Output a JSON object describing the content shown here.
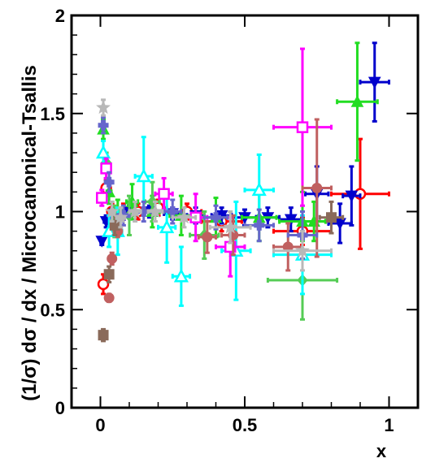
{
  "chart_data": {
    "type": "scatter",
    "title": "",
    "xlabel": "x",
    "ylabel": "(1/σ) dσ / dx / Microcanonical-Tsallis",
    "xlim": [
      -0.1,
      1.1
    ],
    "ylim": [
      0,
      2
    ],
    "xticks": [
      {
        "value": 0,
        "label": "0"
      },
      {
        "value": 0.5,
        "label": "0.5"
      },
      {
        "value": 1,
        "label": "1"
      }
    ],
    "yticks": [
      {
        "value": 0,
        "label": "0"
      },
      {
        "value": 0.5,
        "label": "0.5"
      },
      {
        "value": 1,
        "label": "1"
      },
      {
        "value": 1.5,
        "label": "1.5"
      },
      {
        "value": 2,
        "label": "2"
      }
    ],
    "grid": false,
    "legend": "none",
    "series": [
      {
        "color": "#ff0000",
        "marker": "open-circle",
        "points": [
          {
            "x": 0.01,
            "y": 0.63,
            "xerr": 0.008,
            "yerr": 0.05
          },
          {
            "x": 0.02,
            "y": 1.12,
            "xerr": 0.008,
            "yerr": 0.04
          },
          {
            "x": 0.04,
            "y": 1.0,
            "xerr": 0.01,
            "yerr": 0.04
          },
          {
            "x": 0.08,
            "y": 1.0,
            "xerr": 0.02,
            "yerr": 0.04
          },
          {
            "x": 0.13,
            "y": 1.0,
            "xerr": 0.025,
            "yerr": 0.04
          },
          {
            "x": 0.2,
            "y": 1.02,
            "xerr": 0.03,
            "yerr": 0.04
          },
          {
            "x": 0.3,
            "y": 1.0,
            "xerr": 0.05,
            "yerr": 0.04
          },
          {
            "x": 0.42,
            "y": 0.95,
            "xerr": 0.07,
            "yerr": 0.05
          },
          {
            "x": 0.7,
            "y": 0.9,
            "xerr": 0.1,
            "yerr": 0.07
          },
          {
            "x": 0.9,
            "y": 1.09,
            "xerr": 0.1,
            "yerr": 0.28
          }
        ]
      },
      {
        "color": "#0000cc",
        "marker": "filled-triangle-down",
        "points": [
          {
            "x": 0.005,
            "y": 0.85,
            "xerr": 0.005,
            "yerr": 0.02
          },
          {
            "x": 0.02,
            "y": 0.95,
            "xerr": 0.008,
            "yerr": 0.03
          },
          {
            "x": 0.05,
            "y": 0.99,
            "xerr": 0.012,
            "yerr": 0.03
          },
          {
            "x": 0.1,
            "y": 1.0,
            "xerr": 0.02,
            "yerr": 0.03
          },
          {
            "x": 0.17,
            "y": 1.0,
            "xerr": 0.025,
            "yerr": 0.03
          },
          {
            "x": 0.25,
            "y": 0.99,
            "xerr": 0.03,
            "yerr": 0.03
          },
          {
            "x": 0.33,
            "y": 0.98,
            "xerr": 0.03,
            "yerr": 0.04
          },
          {
            "x": 0.42,
            "y": 0.98,
            "xerr": 0.035,
            "yerr": 0.04
          },
          {
            "x": 0.5,
            "y": 0.97,
            "xerr": 0.04,
            "yerr": 0.04
          },
          {
            "x": 0.58,
            "y": 0.97,
            "xerr": 0.04,
            "yerr": 0.05
          },
          {
            "x": 0.66,
            "y": 0.96,
            "xerr": 0.04,
            "yerr": 0.06
          },
          {
            "x": 0.75,
            "y": 1.09,
            "xerr": 0.04,
            "yerr": 0.14
          },
          {
            "x": 0.83,
            "y": 0.94,
            "xerr": 0.04,
            "yerr": 0.1
          },
          {
            "x": 0.87,
            "y": 1.08,
            "xerr": 0.03,
            "yerr": 0.15
          },
          {
            "x": 0.95,
            "y": 1.66,
            "xerr": 0.05,
            "yerr": 0.2
          }
        ]
      },
      {
        "color": "#22dd22",
        "marker": "filled-triangle-up",
        "points": [
          {
            "x": 0.01,
            "y": 1.42,
            "xerr": 0.006,
            "yerr": 0.05
          },
          {
            "x": 0.03,
            "y": 1.1,
            "xerr": 0.008,
            "yerr": 0.06
          },
          {
            "x": 0.06,
            "y": 1.0,
            "xerr": 0.012,
            "yerr": 0.06
          },
          {
            "x": 0.11,
            "y": 1.05,
            "xerr": 0.02,
            "yerr": 0.09
          },
          {
            "x": 0.18,
            "y": 1.0,
            "xerr": 0.025,
            "yerr": 0.08
          },
          {
            "x": 0.28,
            "y": 0.98,
            "xerr": 0.04,
            "yerr": 0.1
          },
          {
            "x": 0.4,
            "y": 0.97,
            "xerr": 0.05,
            "yerr": 0.1
          },
          {
            "x": 0.55,
            "y": 0.97,
            "xerr": 0.06,
            "yerr": 0.12
          },
          {
            "x": 0.7,
            "y": 0.95,
            "xerr": 0.08,
            "yerr": 0.15
          },
          {
            "x": 0.74,
            "y": 0.95,
            "xerr": 0.04,
            "yerr": 0.1
          },
          {
            "x": 0.89,
            "y": 1.56,
            "xerr": 0.07,
            "yerr": 0.3
          }
        ]
      },
      {
        "color": "#55cc55",
        "marker": "filled-diamond",
        "points": [
          {
            "x": 0.02,
            "y": 1.25,
            "xerr": 0.008,
            "yerr": 0.05
          },
          {
            "x": 0.05,
            "y": 0.95,
            "xerr": 0.012,
            "yerr": 0.08
          },
          {
            "x": 0.1,
            "y": 0.98,
            "xerr": 0.02,
            "yerr": 0.1
          },
          {
            "x": 0.18,
            "y": 1.05,
            "xerr": 0.025,
            "yerr": 0.1
          },
          {
            "x": 0.36,
            "y": 0.88,
            "xerr": 0.05,
            "yerr": 0.12
          },
          {
            "x": 0.7,
            "y": 0.65,
            "xerr": 0.12,
            "yerr": 0.2
          }
        ]
      },
      {
        "color": "#00ffff",
        "marker": "open-triangle-up",
        "points": [
          {
            "x": 0.01,
            "y": 1.3,
            "xerr": 0.006,
            "yerr": 0.06
          },
          {
            "x": 0.03,
            "y": 0.9,
            "xerr": 0.008,
            "yerr": 0.08
          },
          {
            "x": 0.06,
            "y": 0.9,
            "xerr": 0.015,
            "yerr": 0.12
          },
          {
            "x": 0.15,
            "y": 1.18,
            "xerr": 0.03,
            "yerr": 0.2
          },
          {
            "x": 0.23,
            "y": 0.92,
            "xerr": 0.03,
            "yerr": 0.18
          },
          {
            "x": 0.28,
            "y": 0.67,
            "xerr": 0.03,
            "yerr": 0.15
          },
          {
            "x": 0.47,
            "y": 0.8,
            "xerr": 0.05,
            "yerr": 0.25
          },
          {
            "x": 0.55,
            "y": 1.11,
            "xerr": 0.05,
            "yerr": 0.18
          },
          {
            "x": 0.7,
            "y": 0.78,
            "xerr": 0.1,
            "yerr": 0.2
          }
        ]
      },
      {
        "color": "#ff00ff",
        "marker": "open-square",
        "points": [
          {
            "x": 0.005,
            "y": 1.07,
            "xerr": 0.005,
            "yerr": 0.04
          },
          {
            "x": 0.02,
            "y": 1.22,
            "xerr": 0.008,
            "yerr": 0.05
          },
          {
            "x": 0.22,
            "y": 1.09,
            "xerr": 0.03,
            "yerr": 0.08
          },
          {
            "x": 0.33,
            "y": 0.97,
            "xerr": 0.04,
            "yerr": 0.12
          },
          {
            "x": 0.45,
            "y": 0.82,
            "xerr": 0.05,
            "yerr": 0.15
          },
          {
            "x": 0.7,
            "y": 1.43,
            "xerr": 0.1,
            "yerr": 0.4
          }
        ]
      },
      {
        "color": "#c06060",
        "marker": "filled-circle",
        "points": [
          {
            "x": 0.03,
            "y": 0.56,
            "xerr": 0.0,
            "yerr": 0.02
          },
          {
            "x": 0.04,
            "y": 0.76,
            "xerr": 0.0,
            "yerr": 0.03
          },
          {
            "x": 0.06,
            "y": 0.9,
            "xerr": 0.0,
            "yerr": 0.03
          },
          {
            "x": 0.37,
            "y": 0.87,
            "xerr": 0.03,
            "yerr": 0.08
          },
          {
            "x": 0.46,
            "y": 0.88,
            "xerr": 0.04,
            "yerr": 0.1
          },
          {
            "x": 0.65,
            "y": 0.82,
            "xerr": 0.05,
            "yerr": 0.12
          },
          {
            "x": 0.75,
            "y": 1.12,
            "xerr": 0.05,
            "yerr": 0.35
          }
        ]
      },
      {
        "color": "#8a6a5a",
        "marker": "filled-square",
        "points": [
          {
            "x": 0.01,
            "y": 0.37,
            "xerr": 0.005,
            "yerr": 0.03
          },
          {
            "x": 0.03,
            "y": 0.68,
            "xerr": 0.005,
            "yerr": 0.04
          },
          {
            "x": 0.05,
            "y": 0.93,
            "xerr": 0.01,
            "yerr": 0.05
          },
          {
            "x": 0.8,
            "y": 0.97,
            "xerr": 0.04,
            "yerr": 0.08
          }
        ]
      },
      {
        "color": "#6666cc",
        "marker": "filled-cross",
        "points": [
          {
            "x": 0.01,
            "y": 1.44,
            "xerr": 0.005,
            "yerr": 0.04
          },
          {
            "x": 0.03,
            "y": 1.15,
            "xerr": 0.008,
            "yerr": 0.05
          },
          {
            "x": 0.08,
            "y": 0.98,
            "xerr": 0.02,
            "yerr": 0.05
          },
          {
            "x": 0.15,
            "y": 1.0,
            "xerr": 0.025,
            "yerr": 0.05
          },
          {
            "x": 0.25,
            "y": 1.0,
            "xerr": 0.03,
            "yerr": 0.06
          },
          {
            "x": 0.4,
            "y": 0.97,
            "xerr": 0.04,
            "yerr": 0.06
          },
          {
            "x": 0.55,
            "y": 0.93,
            "xerr": 0.05,
            "yerr": 0.08
          },
          {
            "x": 0.7,
            "y": 0.88,
            "xerr": 0.05,
            "yerr": 0.12
          }
        ]
      },
      {
        "color": "#b8b8b8",
        "marker": "filled-star",
        "points": [
          {
            "x": 0.01,
            "y": 1.53,
            "xerr": 0.005,
            "yerr": 0.04
          },
          {
            "x": 0.04,
            "y": 1.0,
            "xerr": 0.01,
            "yerr": 0.05
          },
          {
            "x": 0.07,
            "y": 0.97,
            "xerr": 0.015,
            "yerr": 0.05
          },
          {
            "x": 0.12,
            "y": 1.0,
            "xerr": 0.02,
            "yerr": 0.05
          },
          {
            "x": 0.19,
            "y": 1.0,
            "xerr": 0.025,
            "yerr": 0.05
          },
          {
            "x": 0.29,
            "y": 0.97,
            "xerr": 0.04,
            "yerr": 0.05
          },
          {
            "x": 0.45,
            "y": 0.92,
            "xerr": 0.07,
            "yerr": 0.08
          },
          {
            "x": 0.7,
            "y": 0.8,
            "xerr": 0.1,
            "yerr": 0.1
          }
        ]
      }
    ]
  }
}
